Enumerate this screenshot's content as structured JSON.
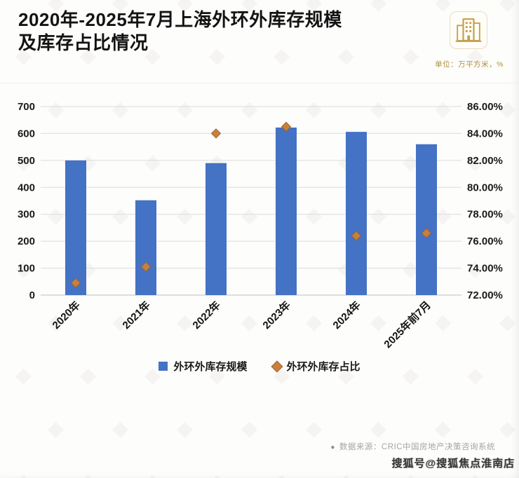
{
  "header": {
    "title_line1": "2020年-2025年7月上海外环外库存规模",
    "title_line2": "及库存占比情况",
    "unit_note": "单位：万平方米，%"
  },
  "chart_data": {
    "type": "bar",
    "title": "2020年-2025年7月上海外环外库存规模及库存占比情况",
    "categories": [
      "2020年",
      "2021年",
      "2022年",
      "2023年",
      "2024年",
      "2025年前7月"
    ],
    "series": [
      {
        "name": "外环外库存规模",
        "type": "bar",
        "axis": "left",
        "color": "#4472C4",
        "values": [
          500,
          352,
          490,
          622,
          606,
          560
        ]
      },
      {
        "name": "外环外库存占比",
        "type": "scatter",
        "marker": "diamond",
        "axis": "right",
        "color": "#C9803C",
        "values": [
          72.9,
          74.1,
          84.0,
          84.5,
          76.4,
          76.6
        ]
      }
    ],
    "left_axis": {
      "min": 0,
      "max": 700,
      "step": 100,
      "ticks": [
        "700",
        "600",
        "500",
        "400",
        "300",
        "200",
        "100",
        "0"
      ]
    },
    "right_axis": {
      "min": 72,
      "max": 86,
      "step": 2,
      "ticks": [
        "86.00%",
        "84.00%",
        "82.00%",
        "80.00%",
        "78.00%",
        "76.00%",
        "74.00%",
        "72.00%"
      ]
    },
    "grid": true,
    "legend_position": "bottom"
  },
  "legend": {
    "items": [
      {
        "label": "外环外库存规模",
        "marker": "square",
        "color": "#4472C4"
      },
      {
        "label": "外环外库存占比",
        "marker": "diamond",
        "color": "#C9803C"
      }
    ]
  },
  "footer": {
    "bullet": "●",
    "source": "数据来源：CRIC中国房地产决策咨询系统",
    "watermark": "搜狐号@搜狐焦点淮南店"
  }
}
